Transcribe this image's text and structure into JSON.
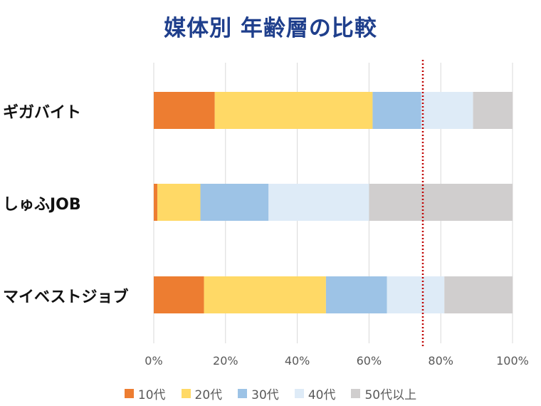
{
  "chart_data": {
    "type": "bar",
    "orientation": "horizontal",
    "stacked": true,
    "title": "媒体別 年齢層の比較",
    "categories": [
      "ギガバイト",
      "しゅふJOB",
      "マイベストジョブ"
    ],
    "series": [
      {
        "name": "10代",
        "color": "#ed7d31",
        "values": [
          17,
          1,
          14
        ]
      },
      {
        "name": "20代",
        "color": "#ffd966",
        "values": [
          44,
          12,
          34
        ]
      },
      {
        "name": "30代",
        "color": "#9dc3e6",
        "values": [
          13.5,
          19,
          17
        ]
      },
      {
        "name": "40代",
        "color": "#deebf7",
        "values": [
          14.5,
          28,
          16
        ]
      },
      {
        "name": "50代以上",
        "color": "#d0cece",
        "values": [
          11,
          40,
          19
        ]
      }
    ],
    "xlim": [
      0,
      100
    ],
    "x_ticks": [
      "0%",
      "20%",
      "40%",
      "60%",
      "80%",
      "100%"
    ],
    "reference_line": {
      "value": 75,
      "style": "dotted",
      "color": "#c00000"
    },
    "grid": true,
    "legend_position": "bottom"
  }
}
